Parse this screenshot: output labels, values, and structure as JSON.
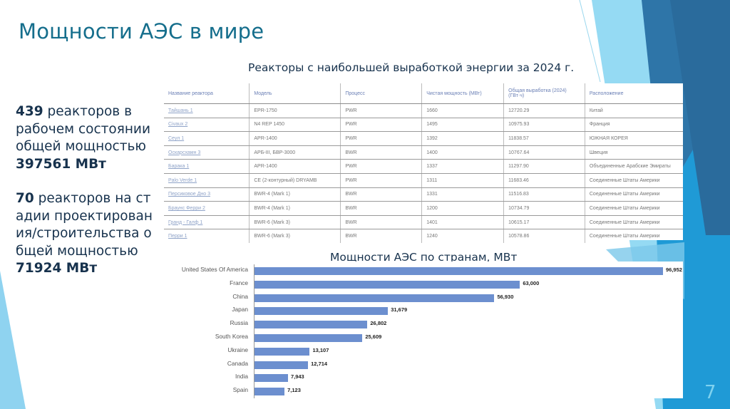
{
  "slide": {
    "title": "Мощности АЭС в мире",
    "subtitle": "Реакторы с наибольшей выработкой энергии за 2024 г.",
    "page_number": "7",
    "colors": {
      "title": "#156e8c",
      "text": "#17324d",
      "bar": "#6c8fcf",
      "accent_light": "#7fd2ef",
      "accent_dark": "#2a6fa3"
    }
  },
  "stats": {
    "operating_count": "439",
    "operating_text": " реакторов в рабочем состоянии общей мощностью",
    "operating_capacity": "397561 МВт",
    "planned_count": "70",
    "planned_text": " реакторов на стадии проектирования/строительства общей мощностью",
    "planned_capacity": "71924 МВт"
  },
  "table": {
    "columns": [
      "Название реактора",
      "Модель",
      "Процесс",
      "Чистая мощность (МВт)",
      "Общая выработка (2024) (ГВт·ч)",
      "Расположение"
    ],
    "rows": [
      [
        "Тайшань 1",
        "EPR-1750",
        "PWR",
        "1660",
        "12720.29",
        "Китай"
      ],
      [
        "Civaux 2",
        "N4 REP 1450",
        "PWR",
        "1495",
        "10975.93",
        "Франция"
      ],
      [
        "Сеул 1",
        "APR-1400",
        "PWR",
        "1392",
        "11838.57",
        "ЮЖНАЯ КОРЕЯ"
      ],
      [
        "Оскарсхамн 3",
        "АРБ-III, БВР-3000",
        "BWR",
        "1400",
        "10767.64",
        "Швеция"
      ],
      [
        "Барака 1",
        "APR-1400",
        "PWR",
        "1337",
        "11297.90",
        "Объединенные Арабские Эмираты"
      ],
      [
        "Palo Verde 1",
        "CE (2-контурный) DRYAMB",
        "PWR",
        "1311",
        "11683.46",
        "Соединенные Штаты Америки"
      ],
      [
        "Персиковое Дно 3",
        "BWR-4 (Mark 1)",
        "BWR",
        "1331",
        "11516.83",
        "Соединенные Штаты Америки"
      ],
      [
        "Браунс Ферри 2",
        "BWR-4 (Mark 1)",
        "BWR",
        "1200",
        "10734.79",
        "Соединенные Штаты Америки"
      ],
      [
        "Гранд - Галф 1",
        "BWR-6 (Mark 3)",
        "BWR",
        "1401",
        "10615.17",
        "Соединенные Штаты Америки"
      ],
      [
        "Перри 1",
        "BWR-6 (Mark 3)",
        "BWR",
        "1240",
        "10578.86",
        "Соединенные Штаты Америки"
      ]
    ]
  },
  "chart_data": {
    "type": "bar",
    "orientation": "horizontal",
    "title": "Мощности АЭС по странам, МВт",
    "categories": [
      "United States Of America",
      "France",
      "China",
      "Japan",
      "Russia",
      "South Korea",
      "Ukraine",
      "Canada",
      "India",
      "Spain"
    ],
    "values": [
      96952,
      63000,
      56930,
      31679,
      26802,
      25609,
      13107,
      12714,
      7943,
      7123
    ],
    "value_labels": [
      "96,952",
      "63,000",
      "56,930",
      "31,679",
      "26,802",
      "25,609",
      "13,107",
      "12,714",
      "7,943",
      "7,123"
    ],
    "xlabel": "",
    "ylabel": "",
    "xlim": [
      0,
      96952
    ],
    "grid": false,
    "legend": "none",
    "data_labels": true
  }
}
